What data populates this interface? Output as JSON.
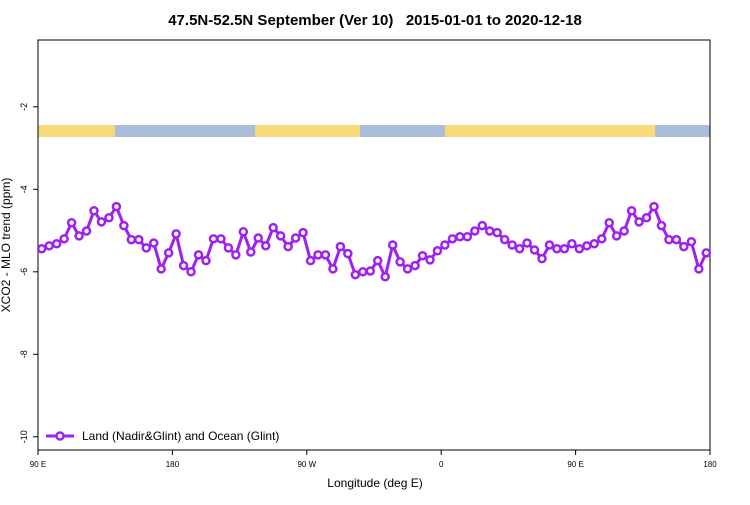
{
  "chart_data": {
    "type": "line",
    "title": "47.5N-52.5N September (Ver 10)   2015-01-01 to 2020-12-18",
    "x_label": "Longitude (deg E)",
    "y_label": "XCO2 - MLO trend (ppm)",
    "x": [
      92.5,
      97.5,
      102.5,
      107.5,
      112.5,
      117.5,
      122.5,
      127.5,
      132.5,
      137.5,
      142.5,
      147.5,
      152.5,
      157.5,
      162.5,
      167.5,
      172.5,
      177.5,
      182.5,
      187.5,
      192.5,
      197.5,
      202.5,
      207.5,
      212.5,
      217.5,
      222.5,
      227.5,
      232.5,
      237.5,
      242.5,
      247.5,
      252.5,
      257.5,
      262.5,
      267.5,
      272.5,
      277.5,
      282.5,
      287.5,
      292.5,
      297.5,
      302.5,
      307.5,
      312.5,
      317.5,
      322.5,
      327.5,
      332.5,
      337.5,
      342.5,
      347.5,
      352.5,
      357.5,
      362.5,
      367.5,
      372.5,
      377.5,
      382.5,
      387.5,
      392.5,
      397.5,
      402.5,
      407.5,
      412.5,
      417.5,
      422.5,
      427.5,
      432.5,
      437.5,
      442.5,
      447.5,
      452.5,
      457.5,
      462.5,
      467.5,
      472.5,
      477.5,
      482.5,
      487.5,
      492.5,
      497.5,
      502.5,
      507.5,
      512.5,
      517.5,
      522.5,
      527.5,
      532.5,
      537.5
    ],
    "series": [
      {
        "name": "Land (Nadir&Glint) and Ocean (Glint)",
        "color": "#a020f0",
        "values": [
          -5.44,
          -5.37,
          -5.32,
          -5.2,
          -4.81,
          -5.13,
          -5.01,
          -4.52,
          -4.79,
          -4.69,
          -4.42,
          -4.88,
          -5.22,
          -5.22,
          -5.42,
          -5.3,
          -5.93,
          -5.54,
          -5.08,
          -5.85,
          -6.0,
          -5.59,
          -5.73,
          -5.2,
          -5.2,
          -5.42,
          -5.59,
          -5.03,
          -5.52,
          -5.18,
          -5.37,
          -4.93,
          -5.13,
          -5.39,
          -5.18,
          -5.05,
          -5.73,
          -5.59,
          -5.59,
          -5.93,
          -5.39,
          -5.56,
          -6.07,
          -6.0,
          -5.98,
          -5.73,
          -6.12,
          -5.35,
          -5.76,
          -5.93,
          -5.85,
          -5.61,
          -5.71,
          -5.49,
          -5.35,
          -5.2,
          -5.15,
          -5.15,
          -5.01,
          -4.88,
          -5.01,
          -5.05,
          -5.22,
          -5.35,
          -5.44,
          -5.3,
          -5.47,
          -5.68,
          -5.35,
          -5.44,
          -5.44,
          -5.32,
          -5.44,
          -5.37,
          -5.32,
          -5.2,
          -4.81,
          -5.13,
          -5.01,
          -4.52,
          -4.79,
          -4.69,
          -4.42,
          -4.88,
          -5.22,
          -5.22,
          -5.39,
          -5.27,
          -5.93,
          -5.54
        ]
      }
    ],
    "xlim": [
      90,
      540
    ],
    "xticks": [
      {
        "value": 90,
        "label": "90 E"
      },
      180,
      {
        "value": 270,
        "label": "90 W"
      },
      {
        "value": 360,
        "label": "0"
      },
      {
        "value": 450,
        "label": "90 E"
      },
      {
        "value": 540,
        "label": "180"
      }
    ],
    "ylim": [
      -10.32,
      -0.38
    ],
    "yticks": [
      -10,
      -8,
      -6,
      -4,
      -2
    ],
    "legend": "bottom-left"
  }
}
